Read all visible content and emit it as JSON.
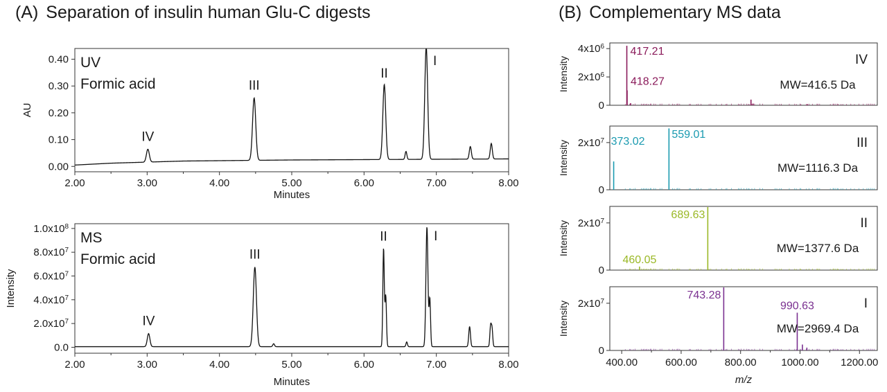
{
  "panel_a": {
    "letter": "(A)",
    "title": "Separation of insulin human Glu-C digests"
  },
  "panel_b": {
    "letter": "(B)",
    "title": "Complementary MS data"
  },
  "chart_data": [
    {
      "id": "uv",
      "type": "line",
      "annotation": [
        "UV",
        "Formic acid"
      ],
      "xlabel": "Minutes",
      "ylabel": "AU",
      "xlim": [
        2.0,
        8.0
      ],
      "ylim": [
        -0.02,
        0.44
      ],
      "xticks": [
        "2.00",
        "3.00",
        "4.00",
        "5.00",
        "6.00",
        "7.00",
        "8.00"
      ],
      "yticks": [
        "0.00",
        "0.10",
        "0.20",
        "0.30",
        "0.40"
      ],
      "ytick_values": [
        0.0,
        0.1,
        0.2,
        0.3,
        0.4
      ],
      "baseline": [
        [
          2.0,
          0.005
        ],
        [
          2.5,
          0.012
        ],
        [
          3.5,
          0.02
        ],
        [
          5.0,
          0.024
        ],
        [
          6.5,
          0.026
        ],
        [
          8.0,
          0.028
        ]
      ],
      "peaks": [
        {
          "label": "IV",
          "x": 3.01,
          "height": 0.048,
          "width": 0.02
        },
        {
          "label": "III",
          "x": 4.48,
          "height": 0.233,
          "width": 0.022
        },
        {
          "label": "II",
          "x": 6.28,
          "height": 0.28,
          "width": 0.02
        },
        {
          "label": "I",
          "x": 6.86,
          "height": 0.42,
          "width": 0.02
        },
        {
          "label": "",
          "x": 6.58,
          "height": 0.03,
          "width": 0.012
        },
        {
          "label": "",
          "x": 7.47,
          "height": 0.047,
          "width": 0.014
        },
        {
          "label": "",
          "x": 7.76,
          "height": 0.058,
          "width": 0.014
        }
      ]
    },
    {
      "id": "ms",
      "type": "line",
      "annotation": [
        "MS",
        "Formic acid"
      ],
      "xlabel": "Minutes",
      "ylabel": "Intensity",
      "xlim": [
        2.0,
        8.0
      ],
      "ylim": [
        -5000000,
        104000000
      ],
      "xticks": [
        "2.00",
        "3.00",
        "4.00",
        "5.00",
        "6.00",
        "7.00",
        "8.00"
      ],
      "yticks": [
        "0.0",
        "2.0x10",
        "4.0x10",
        "6.0x10",
        "8.0x10",
        "1.0x10"
      ],
      "ytick_exps": [
        "",
        "7",
        "7",
        "7",
        "7",
        "8"
      ],
      "ytick_values": [
        0,
        20000000,
        40000000,
        60000000,
        80000000,
        100000000
      ],
      "baseline": [
        [
          2.0,
          500000
        ],
        [
          8.0,
          500000
        ]
      ],
      "peaks": [
        {
          "label": "IV",
          "x": 3.02,
          "height": 11000000,
          "width": 0.018
        },
        {
          "label": "III",
          "x": 4.49,
          "height": 67000000,
          "width": 0.022
        },
        {
          "label": "",
          "x": 4.75,
          "height": 2500000,
          "width": 0.012
        },
        {
          "label": "II",
          "x": 6.27,
          "height": 83000000,
          "width": 0.01
        },
        {
          "label": "",
          "x": 6.3,
          "height": 43000000,
          "width": 0.01
        },
        {
          "label": "",
          "x": 6.59,
          "height": 4000000,
          "width": 0.01
        },
        {
          "label": "I",
          "x": 6.87,
          "height": 101000000,
          "width": 0.014
        },
        {
          "label": "",
          "x": 6.91,
          "height": 40000000,
          "width": 0.01
        },
        {
          "label": "",
          "x": 7.46,
          "height": 17000000,
          "width": 0.012
        },
        {
          "label": "",
          "x": 7.75,
          "height": 17000000,
          "width": 0.01
        },
        {
          "label": "",
          "x": 7.77,
          "height": 15000000,
          "width": 0.01
        }
      ]
    },
    {
      "id": "ms-iv",
      "type": "bar",
      "color": "#8a1a5a",
      "roman": "IV",
      "mw": "MW=416.5 Da",
      "ylabel": "Intensity",
      "xlim": [
        360,
        1260
      ],
      "ylim": [
        0,
        4400000
      ],
      "yticks": [
        "0",
        "2x10",
        "4x10"
      ],
      "ytick_exps": [
        "",
        "6",
        "6"
      ],
      "ytick_values": [
        0,
        2000000,
        4000000
      ],
      "peaks": [
        {
          "mz": 417.21,
          "intensity": 4200000,
          "label": "417.21",
          "label_pos": "top"
        },
        {
          "mz": 418.27,
          "intensity": 1050000,
          "label": "418.27",
          "label_pos": "mid"
        },
        {
          "mz": 430.0,
          "intensity": 150000
        },
        {
          "mz": 835.0,
          "intensity": 400000
        },
        {
          "mz": 842.0,
          "intensity": 120000
        },
        {
          "mz": 1025.0,
          "intensity": 80000
        }
      ]
    },
    {
      "id": "ms-iii",
      "type": "bar",
      "color": "#1a9ab0",
      "roman": "III",
      "mw": "MW=1116.3 Da",
      "ylabel": "Intensity",
      "xlim": [
        360,
        1260
      ],
      "ylim": [
        0,
        27000000
      ],
      "yticks": [
        "0",
        "2x10"
      ],
      "ytick_exps": [
        "",
        "7"
      ],
      "ytick_values": [
        0,
        20000000
      ],
      "peaks": [
        {
          "mz": 373.02,
          "intensity": 12000000,
          "label": "373.02",
          "label_pos": "left"
        },
        {
          "mz": 559.01,
          "intensity": 26000000,
          "label": "559.01",
          "label_pos": "right"
        }
      ]
    },
    {
      "id": "ms-ii",
      "type": "bar",
      "color": "#9ab825",
      "roman": "II",
      "mw": "MW=1377.6 Da",
      "ylabel": "Intensity",
      "xlim": [
        360,
        1260
      ],
      "ylim": [
        0,
        27000000
      ],
      "yticks": [
        "0",
        "2x10"
      ],
      "ytick_exps": [
        "",
        "7"
      ],
      "ytick_values": [
        0,
        20000000
      ],
      "peaks": [
        {
          "mz": 460.05,
          "intensity": 1500000,
          "label": "460.05",
          "label_pos": "above"
        },
        {
          "mz": 689.63,
          "intensity": 27000000,
          "label": "689.63",
          "label_pos": "left"
        }
      ]
    },
    {
      "id": "ms-i",
      "type": "bar",
      "color": "#7a3090",
      "roman": "I",
      "mw": "MW=2969.4 Da",
      "ylabel": "Intensity",
      "xlabel": "m/z",
      "xlim": [
        360,
        1260
      ],
      "ylim": [
        0,
        27000000
      ],
      "xticks": [
        "400.00",
        "600.00",
        "800.00",
        "1000.00",
        "1200.00"
      ],
      "xtick_values": [
        400,
        600,
        800,
        1000,
        1200
      ],
      "yticks": [
        "0",
        "2x10"
      ],
      "ytick_exps": [
        "",
        "7"
      ],
      "ytick_values": [
        0,
        20000000
      ],
      "peaks": [
        {
          "mz": 743.28,
          "intensity": 27000000,
          "label": "743.28",
          "label_pos": "left"
        },
        {
          "mz": 990.63,
          "intensity": 16000000,
          "label": "990.63",
          "label_pos": "above"
        },
        {
          "mz": 1008.0,
          "intensity": 2500000
        },
        {
          "mz": 1023.0,
          "intensity": 1200000
        }
      ]
    }
  ]
}
